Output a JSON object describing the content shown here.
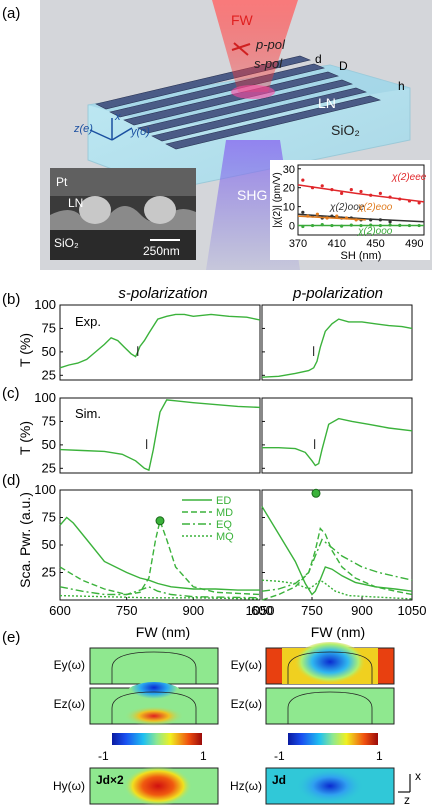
{
  "panel_labels": {
    "a": "(a)",
    "b": "(b)",
    "c": "(c)",
    "d": "(d)",
    "e": "(e)"
  },
  "schematic": {
    "fw": "FW",
    "p_pol": "p-pol",
    "s_pol": "s-pol",
    "d": "d",
    "D": "D",
    "h": "h",
    "ln": "LN",
    "sio2": "SiO₂",
    "shg": "SHG",
    "axis_z": "z(e)",
    "axis_x": "x",
    "axis_y": "y(o)",
    "sem_pt": "Pt",
    "sem_ln": "LN",
    "sem_sio2": "SiO₂",
    "sem_scale": "250nm"
  },
  "columns": {
    "s": "s-polarization",
    "p": "p-polarization"
  },
  "row_labels": {
    "exp": "Exp.",
    "sim": "Sim.",
    "t_ylabel": "T (%)",
    "sca_ylabel": "Sca. Pwr. (a.u.)",
    "fw_xlabel": "FW (nm)"
  },
  "field_labels": {
    "ey": "Ey(ω)",
    "ez": "Ez(ω)",
    "hy": "Hy(ω)",
    "hz": "Hz(ω)",
    "jd_x2": "Jd×2",
    "jd": "Jd",
    "cb_min": "-1",
    "cb_max": "1",
    "ax_x": "x",
    "ax_z": "z"
  },
  "chart_data": [
    {
      "id": "inset_chi2",
      "type": "scatter",
      "xlabel": "SH (nm)",
      "ylabel": "|χ(2)| (pm/V)",
      "xticks": [
        370,
        410,
        450,
        490
      ],
      "yticks": [
        0,
        10,
        20,
        30
      ],
      "xlim": [
        370,
        500
      ],
      "ylim": [
        -5,
        32
      ],
      "series": [
        {
          "name": "χ(2)eee",
          "color": "#e0262a",
          "x": [
            375,
            385,
            395,
            405,
            415,
            425,
            435,
            445,
            455,
            465,
            475,
            485,
            495
          ],
          "y": [
            24,
            20,
            21,
            19,
            17,
            19,
            18,
            16,
            17,
            15,
            14,
            13,
            12
          ],
          "fit": [
            [
              370,
              21.5
            ],
            [
              430,
              17
            ],
            [
              500,
              12.5
            ]
          ]
        },
        {
          "name": "χ(2)ooe",
          "color": "#333333",
          "x": [
            375,
            385,
            395,
            405,
            415,
            425,
            435,
            445,
            455,
            465
          ],
          "y": [
            7,
            5,
            4,
            5,
            4,
            4,
            3,
            3,
            3,
            2
          ],
          "fit": [
            [
              370,
              6
            ],
            [
              440,
              3.5
            ],
            [
              500,
              2
            ]
          ]
        },
        {
          "name": "χ(2)eoo",
          "color": "#e07b1e",
          "x": [
            380,
            390,
            400,
            410,
            420,
            430
          ],
          "y": [
            5,
            6,
            4,
            5,
            4,
            3
          ],
          "fit": [
            [
              370,
              5
            ],
            [
              440,
              3
            ]
          ]
        },
        {
          "name": "χ(2)ooo",
          "color": "#3aaa3a",
          "x": [
            375,
            385,
            395,
            405,
            415,
            425,
            435,
            445,
            455,
            465,
            475,
            485,
            495
          ],
          "y": [
            -0.5,
            0,
            0.5,
            0,
            -0.3,
            0.2,
            0,
            0.2,
            0,
            0.3,
            0.1,
            0,
            0
          ],
          "fit": [
            [
              370,
              0
            ],
            [
              500,
              0
            ]
          ]
        }
      ]
    },
    {
      "id": "b_left",
      "type": "line",
      "ylabel": "T (%)",
      "xlim": [
        600,
        1050
      ],
      "ylim": [
        20,
        100
      ],
      "yticks": [
        25,
        50,
        75,
        100
      ],
      "series": [
        {
          "name": "",
          "x": [
            600,
            620,
            640,
            660,
            680,
            700,
            715,
            730,
            745,
            760,
            770,
            775,
            780,
            790,
            800,
            820,
            840,
            860,
            880,
            900,
            940,
            980,
            1020,
            1050
          ],
          "y": [
            33,
            36,
            38,
            42,
            50,
            58,
            65,
            62,
            55,
            48,
            45,
            50,
            56,
            62,
            70,
            85,
            88,
            90,
            90,
            88,
            90,
            88,
            87,
            84
          ]
        }
      ],
      "marker_x": [
        775
      ]
    },
    {
      "id": "b_right",
      "type": "line",
      "xlim": [
        600,
        1050
      ],
      "ylim": [
        20,
        100
      ],
      "yticks": [
        25,
        50,
        75,
        100
      ],
      "series": [
        {
          "name": "",
          "x": [
            600,
            650,
            700,
            740,
            755,
            765,
            775,
            790,
            810,
            830,
            860,
            900,
            940,
            980,
            1020,
            1050
          ],
          "y": [
            23,
            24,
            27,
            30,
            33,
            40,
            55,
            72,
            80,
            85,
            82,
            82,
            80,
            78,
            77,
            75
          ]
        }
      ],
      "marker_x": [
        755
      ]
    },
    {
      "id": "c_left",
      "type": "line",
      "ylabel": "T (%)",
      "xlim": [
        600,
        1050
      ],
      "ylim": [
        20,
        100
      ],
      "yticks": [
        25,
        50,
        75,
        100
      ],
      "series": [
        {
          "name": "",
          "x": [
            600,
            650,
            700,
            740,
            770,
            790,
            800,
            810,
            825,
            840,
            860,
            900,
            950,
            1000,
            1050
          ],
          "y": [
            45,
            44,
            43,
            40,
            33,
            25,
            23,
            45,
            85,
            98,
            97,
            95,
            93,
            91,
            90
          ]
        }
      ],
      "marker_x": [
        795
      ]
    },
    {
      "id": "c_right",
      "type": "line",
      "xlim": [
        600,
        1050
      ],
      "ylim": [
        20,
        100
      ],
      "yticks": [
        25,
        50,
        75,
        100
      ],
      "series": [
        {
          "name": "",
          "x": [
            600,
            650,
            700,
            730,
            750,
            760,
            770,
            780,
            800,
            830,
            870,
            920,
            980,
            1050
          ],
          "y": [
            47,
            47,
            46,
            42,
            33,
            28,
            30,
            45,
            72,
            78,
            75,
            72,
            68,
            65
          ]
        }
      ],
      "marker_x": [
        758
      ]
    },
    {
      "id": "d_left",
      "type": "line",
      "ylabel": "Sca. Pwr. (a.u.)",
      "xlabel": "FW (nm)",
      "xlim": [
        600,
        1050
      ],
      "ylim": [
        0,
        100
      ],
      "yticks": [
        25,
        50,
        75,
        100
      ],
      "xticks": [
        600,
        750,
        900,
        1050
      ],
      "series": [
        {
          "name": "ED",
          "dash": "",
          "x": [
            600,
            615,
            630,
            660,
            700,
            750,
            780,
            800,
            820,
            850,
            900,
            950,
            1000,
            1050
          ],
          "y": [
            68,
            75,
            70,
            55,
            35,
            25,
            20,
            18,
            15,
            12,
            10,
            10,
            9,
            9
          ]
        },
        {
          "name": "MD",
          "dash": "6,3",
          "x": [
            600,
            650,
            700,
            750,
            780,
            800,
            815,
            825,
            840,
            860,
            900,
            950,
            1050
          ],
          "y": [
            30,
            18,
            10,
            5,
            7,
            20,
            55,
            72,
            55,
            30,
            12,
            7,
            5
          ]
        },
        {
          "name": "EQ",
          "dash": "8,3,2,3",
          "x": [
            600,
            650,
            700,
            750,
            780,
            800,
            820,
            850,
            900,
            1050
          ],
          "y": [
            12,
            8,
            5,
            5,
            9,
            12,
            8,
            5,
            3,
            2
          ]
        },
        {
          "name": "MQ",
          "dash": "2,2",
          "x": [
            600,
            700,
            800,
            900,
            1050
          ],
          "y": [
            4,
            3,
            2,
            2,
            1
          ]
        }
      ],
      "marker": {
        "x": 825,
        "y": 72
      }
    },
    {
      "id": "d_right",
      "type": "line",
      "xlabel": "FW (nm)",
      "xlim": [
        600,
        1050
      ],
      "ylim": [
        0,
        100
      ],
      "yticks": [
        25,
        50,
        75,
        100
      ],
      "xticks": [
        600,
        750,
        900,
        1050
      ],
      "series": [
        {
          "name": "ED",
          "dash": "",
          "x": [
            600,
            650,
            700,
            730,
            750,
            760,
            770,
            790,
            810,
            840,
            880,
            940,
            1000,
            1050
          ],
          "y": [
            85,
            60,
            35,
            15,
            5,
            8,
            15,
            30,
            28,
            22,
            16,
            12,
            10,
            8
          ]
        },
        {
          "name": "MD",
          "dash": "6,3",
          "x": [
            600,
            650,
            700,
            740,
            760,
            775,
            790,
            810,
            840,
            880,
            940,
            1000,
            1050
          ],
          "y": [
            0,
            5,
            12,
            25,
            45,
            65,
            60,
            45,
            30,
            20,
            12,
            8,
            5
          ]
        },
        {
          "name": "EQ",
          "dash": "8,3,2,3",
          "x": [
            600,
            650,
            700,
            740,
            760,
            780,
            800,
            840,
            900,
            950,
            1050
          ],
          "y": [
            8,
            10,
            15,
            25,
            40,
            55,
            50,
            40,
            30,
            25,
            18
          ]
        },
        {
          "name": "MQ",
          "dash": "2,2",
          "x": [
            600,
            650,
            700,
            740,
            760,
            775,
            790,
            820,
            860,
            1050
          ],
          "y": [
            18,
            17,
            15,
            10,
            14,
            18,
            15,
            8,
            4,
            1
          ]
        }
      ],
      "marker": {
        "x": 762,
        "y": 97
      }
    }
  ]
}
